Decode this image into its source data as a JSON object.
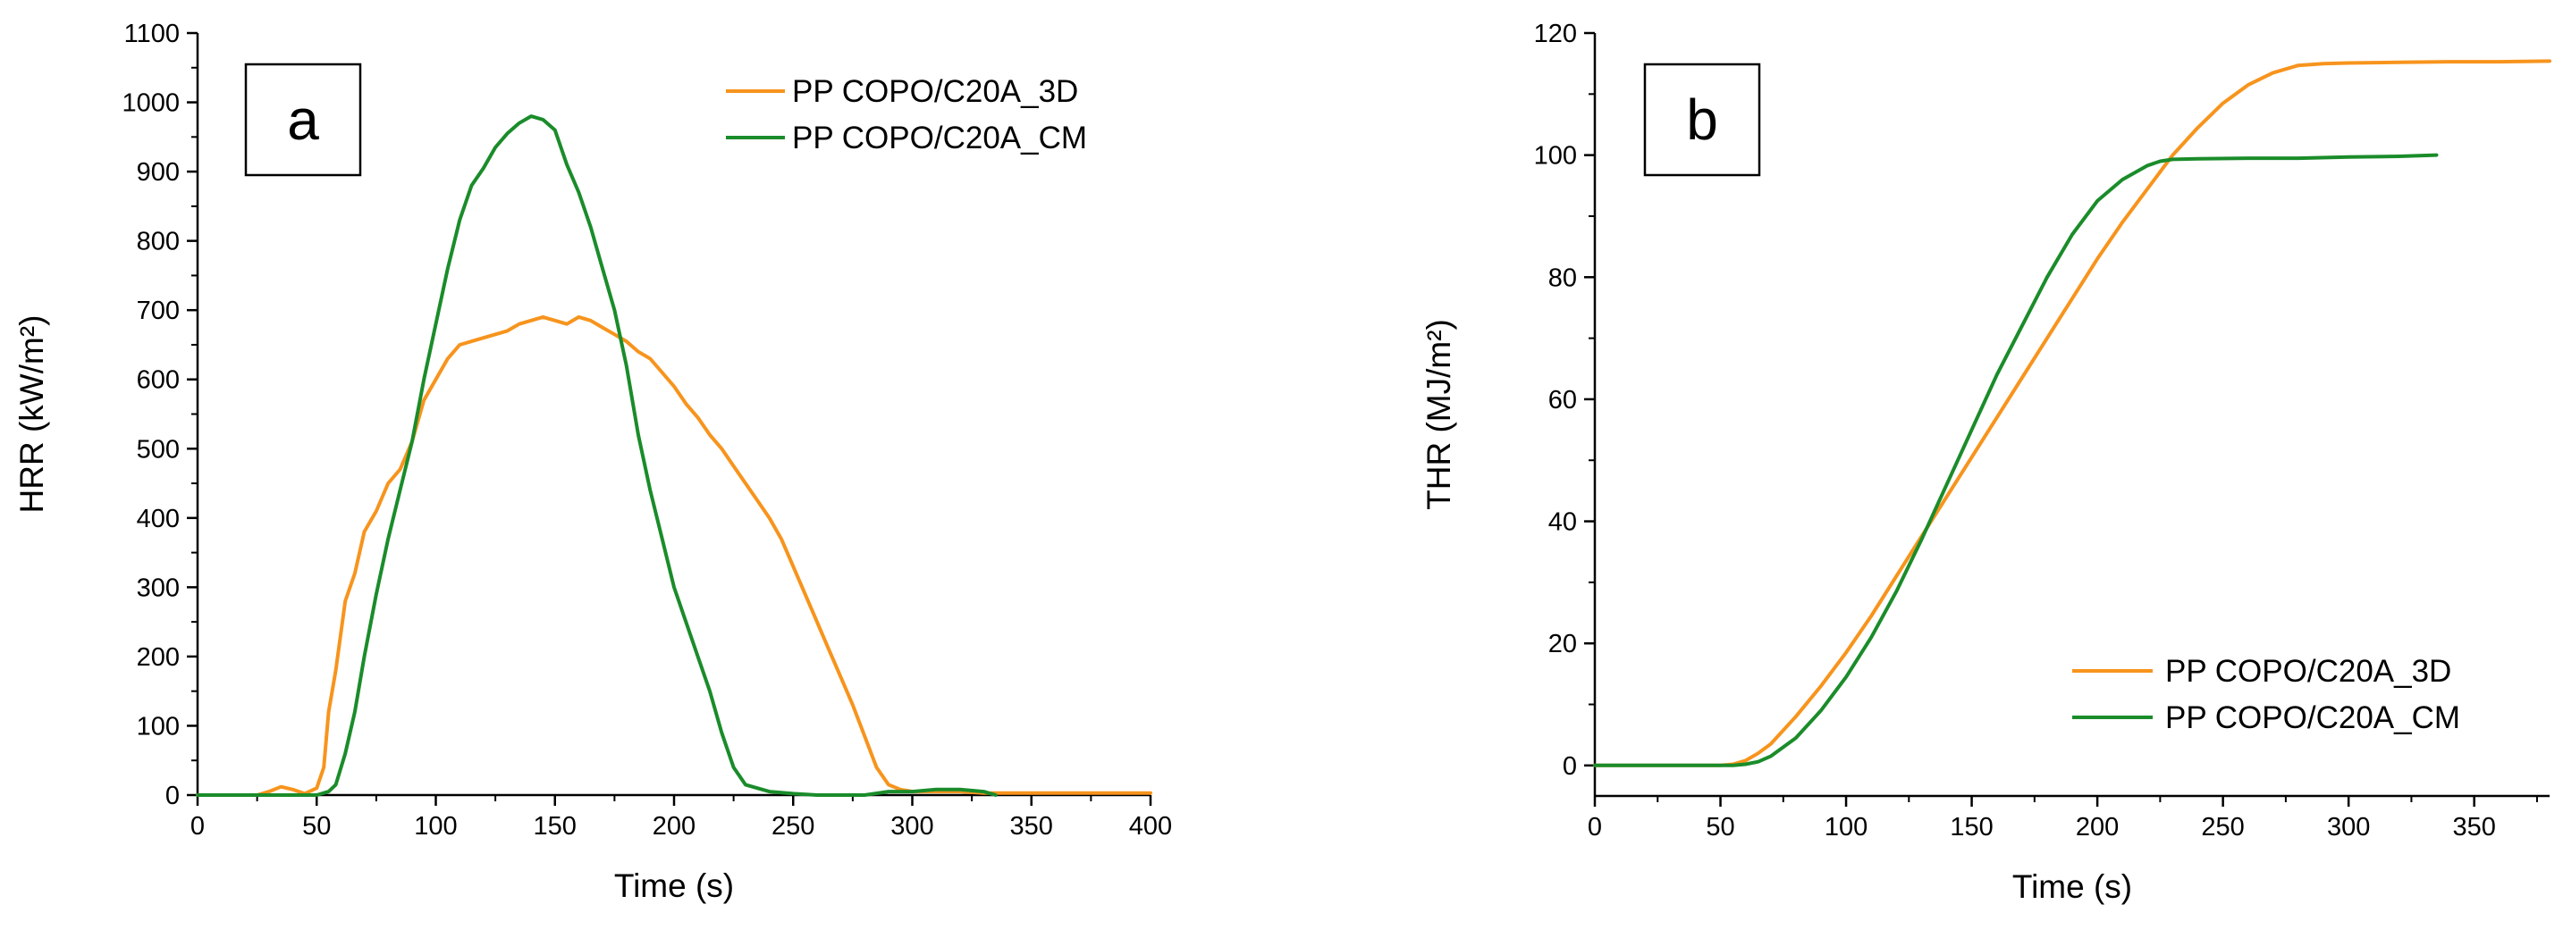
{
  "chart_data": [
    {
      "type": "line",
      "panel_label": "a",
      "xlabel": "Time (s)",
      "ylabel": "HRR (kW/m²)",
      "xlim": [
        0,
        400
      ],
      "ylim": [
        0,
        1100
      ],
      "xticks": [
        0,
        50,
        100,
        150,
        200,
        250,
        300,
        350,
        400
      ],
      "yticks": [
        0,
        100,
        200,
        300,
        400,
        500,
        600,
        700,
        800,
        900,
        1000,
        1100
      ],
      "grid": false,
      "legend_position": "top-right",
      "series": [
        {
          "name": "PP COPO/C20A_3D",
          "color": "#F7941D",
          "x": [
            0,
            25,
            30,
            35,
            40,
            45,
            50,
            53,
            55,
            58,
            62,
            66,
            70,
            75,
            80,
            85,
            90,
            95,
            100,
            105,
            110,
            115,
            120,
            125,
            130,
            135,
            140,
            145,
            150,
            155,
            160,
            165,
            170,
            175,
            180,
            185,
            190,
            195,
            200,
            205,
            210,
            215,
            220,
            225,
            230,
            235,
            240,
            245,
            250,
            255,
            260,
            265,
            270,
            275,
            280,
            285,
            290,
            295,
            300,
            310,
            320,
            330,
            340,
            350,
            360,
            370,
            380,
            390,
            400
          ],
          "y": [
            0,
            0,
            5,
            12,
            8,
            2,
            10,
            40,
            120,
            180,
            280,
            320,
            380,
            410,
            450,
            470,
            510,
            570,
            600,
            630,
            650,
            655,
            660,
            665,
            670,
            680,
            685,
            690,
            685,
            680,
            690,
            685,
            675,
            665,
            655,
            640,
            630,
            610,
            590,
            565,
            545,
            520,
            500,
            475,
            450,
            425,
            400,
            370,
            330,
            290,
            250,
            210,
            170,
            130,
            85,
            40,
            15,
            8,
            5,
            5,
            5,
            3,
            3,
            3,
            3,
            3,
            3,
            3,
            3
          ]
        },
        {
          "name": "PP COPO/C20A_CM",
          "color": "#1A8C2A",
          "x": [
            0,
            40,
            50,
            55,
            58,
            62,
            66,
            70,
            75,
            80,
            85,
            90,
            95,
            100,
            105,
            110,
            115,
            120,
            125,
            130,
            135,
            140,
            145,
            150,
            155,
            160,
            165,
            170,
            175,
            180,
            185,
            190,
            195,
            200,
            205,
            210,
            215,
            220,
            225,
            230,
            240,
            250,
            260,
            270,
            280,
            290,
            300,
            310,
            320,
            330,
            335
          ],
          "y": [
            0,
            0,
            0,
            5,
            15,
            60,
            120,
            200,
            290,
            370,
            440,
            510,
            600,
            680,
            760,
            830,
            880,
            905,
            935,
            955,
            970,
            980,
            975,
            960,
            910,
            870,
            820,
            760,
            700,
            620,
            520,
            440,
            370,
            300,
            250,
            200,
            150,
            90,
            40,
            15,
            5,
            2,
            0,
            0,
            0,
            5,
            5,
            8,
            8,
            5,
            0
          ]
        }
      ]
    },
    {
      "type": "line",
      "panel_label": "b",
      "xlabel": "Time (s)",
      "ylabel": "THR (MJ/m²)",
      "xlim": [
        0,
        380
      ],
      "ylim": [
        -5,
        120
      ],
      "xticks": [
        0,
        50,
        100,
        150,
        200,
        250,
        300,
        350
      ],
      "yticks": [
        0,
        20,
        40,
        60,
        80,
        100,
        120
      ],
      "grid": false,
      "legend_position": "bottom-right",
      "series": [
        {
          "name": "PP COPO/C20A_3D",
          "color": "#F7941D",
          "x": [
            0,
            50,
            55,
            60,
            65,
            70,
            80,
            90,
            100,
            110,
            120,
            130,
            140,
            150,
            160,
            170,
            180,
            190,
            200,
            210,
            220,
            230,
            240,
            250,
            260,
            270,
            280,
            290,
            300,
            320,
            340,
            360,
            380
          ],
          "y": [
            0,
            0,
            0.2,
            0.8,
            2,
            3.5,
            8,
            13,
            18.5,
            24.5,
            31,
            37.5,
            44,
            50.5,
            57,
            63.5,
            70,
            76.5,
            83,
            89,
            94.5,
            100,
            104.5,
            108.5,
            111.5,
            113.5,
            114.7,
            115,
            115.1,
            115.2,
            115.3,
            115.3,
            115.4
          ]
        },
        {
          "name": "PP COPO/C20A_CM",
          "color": "#1A8C2A",
          "x": [
            0,
            55,
            60,
            65,
            70,
            80,
            90,
            100,
            110,
            120,
            130,
            140,
            150,
            160,
            170,
            180,
            190,
            200,
            210,
            220,
            225,
            230,
            240,
            260,
            280,
            300,
            320,
            335
          ],
          "y": [
            0,
            0,
            0.2,
            0.6,
            1.5,
            4.5,
            9,
            14.5,
            21,
            28.5,
            37,
            46,
            55,
            64,
            72,
            80,
            87,
            92.5,
            96,
            98.3,
            99,
            99.3,
            99.4,
            99.5,
            99.5,
            99.7,
            99.8,
            100
          ]
        }
      ]
    }
  ]
}
